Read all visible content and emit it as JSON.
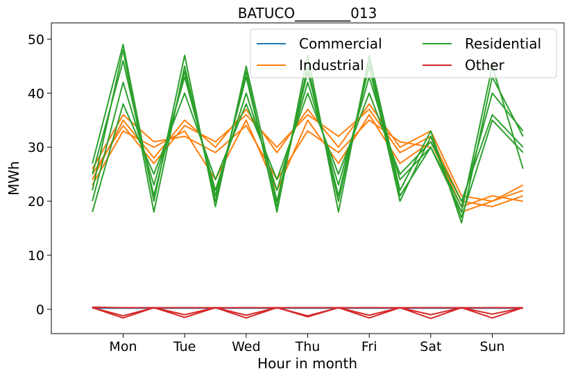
{
  "chart_data": {
    "type": "line",
    "title": "BATUCO________013",
    "xlabel": "Hour in month",
    "ylabel": "MWh",
    "ylim": [
      -4.5,
      53
    ],
    "yticks": [
      0,
      10,
      20,
      30,
      40,
      50
    ],
    "xlim": [
      -16,
      184
    ],
    "categories": [
      "Mon",
      "Tue",
      "Wed",
      "Thu",
      "Fri",
      "Sat",
      "Sun"
    ],
    "legend_position": "top-right",
    "legend_columns": 2,
    "grid": false,
    "x": [
      0,
      12,
      24,
      36,
      48,
      60,
      72,
      84,
      96,
      108,
      120,
      132,
      144,
      156,
      168
    ],
    "series": [
      {
        "name": "Commercial",
        "color": "#1f77b4",
        "lines": [
          [
            0.2,
            0.2,
            0.2,
            0.2,
            0.2,
            0.2,
            0.2,
            0.2,
            0.2,
            0.2,
            0.2,
            0.2,
            0.2,
            0.2,
            0.2
          ]
        ]
      },
      {
        "name": "Industrial",
        "color": "#ff7f0e",
        "lines": [
          [
            24,
            35,
            28,
            35,
            30,
            37,
            29,
            37,
            30,
            38,
            30,
            33,
            21,
            20,
            22
          ],
          [
            25,
            34,
            27,
            34,
            31,
            36,
            30,
            36,
            32,
            37,
            29,
            32,
            20,
            19,
            21
          ],
          [
            23,
            33,
            30,
            33,
            24,
            35,
            22,
            35,
            27,
            36,
            27,
            31,
            19,
            21,
            20
          ],
          [
            26,
            36,
            31,
            32,
            29,
            34,
            24,
            33,
            29,
            35,
            31,
            30,
            18,
            20,
            23
          ]
        ]
      },
      {
        "name": "Residential",
        "color": "#2ca02c",
        "lines": [
          [
            27,
            49,
            20,
            47,
            19,
            45,
            20,
            44,
            21,
            45,
            20,
            32,
            17,
            35,
            29
          ],
          [
            22,
            48,
            18,
            45,
            20,
            44,
            18,
            47,
            18,
            47,
            22,
            33,
            16,
            43,
            32
          ],
          [
            20,
            42,
            23,
            43,
            22,
            40,
            22,
            42,
            23,
            43,
            24,
            30,
            18,
            45,
            26
          ],
          [
            18,
            38,
            25,
            40,
            24,
            38,
            24,
            40,
            25,
            40,
            25,
            31,
            20,
            36,
            30
          ],
          [
            25,
            46,
            21,
            44,
            21,
            43,
            19,
            45,
            20,
            46,
            21,
            30,
            19,
            40,
            33
          ]
        ]
      },
      {
        "name": "Other",
        "color": "#d62728",
        "lines": [
          [
            0.4,
            0.3,
            0.3,
            0.3,
            0.3,
            0.3,
            0.3,
            0.3,
            0.3,
            0.3,
            0.3,
            0.3,
            0.3,
            0.3,
            0.3
          ],
          [
            0.3,
            -1.6,
            0.3,
            -1.5,
            0.3,
            -1.6,
            0.3,
            -1.4,
            0.3,
            -1.6,
            0.3,
            -1.7,
            0.3,
            -1.6,
            0.3
          ],
          [
            0.3,
            -1.2,
            0.3,
            -1.0,
            0.3,
            -1.1,
            0.3,
            -1.2,
            0.3,
            -1.1,
            0.3,
            -1.0,
            0.3,
            -0.9,
            0.3
          ]
        ]
      }
    ]
  }
}
